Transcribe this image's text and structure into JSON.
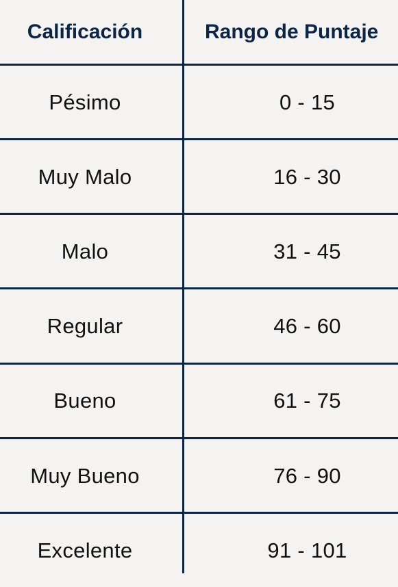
{
  "table": {
    "headers": [
      "Calificación",
      "Rango de Puntaje"
    ],
    "rows": [
      {
        "calificacion": "Pésimo",
        "rango": "0 - 15"
      },
      {
        "calificacion": "Muy Malo",
        "rango": "16 - 30"
      },
      {
        "calificacion": "Malo",
        "rango": "31 - 45"
      },
      {
        "calificacion": "Regular",
        "rango": "46 - 60"
      },
      {
        "calificacion": "Bueno",
        "rango": "61 - 75"
      },
      {
        "calificacion": "Muy Bueno",
        "rango": "76 - 90"
      },
      {
        "calificacion": "Excelente",
        "rango": "91 - 101"
      }
    ]
  },
  "colors": {
    "background": "#f4f3f2",
    "lines": "#0d2545",
    "header_text": "#0d2545",
    "body_text": "#111111"
  }
}
